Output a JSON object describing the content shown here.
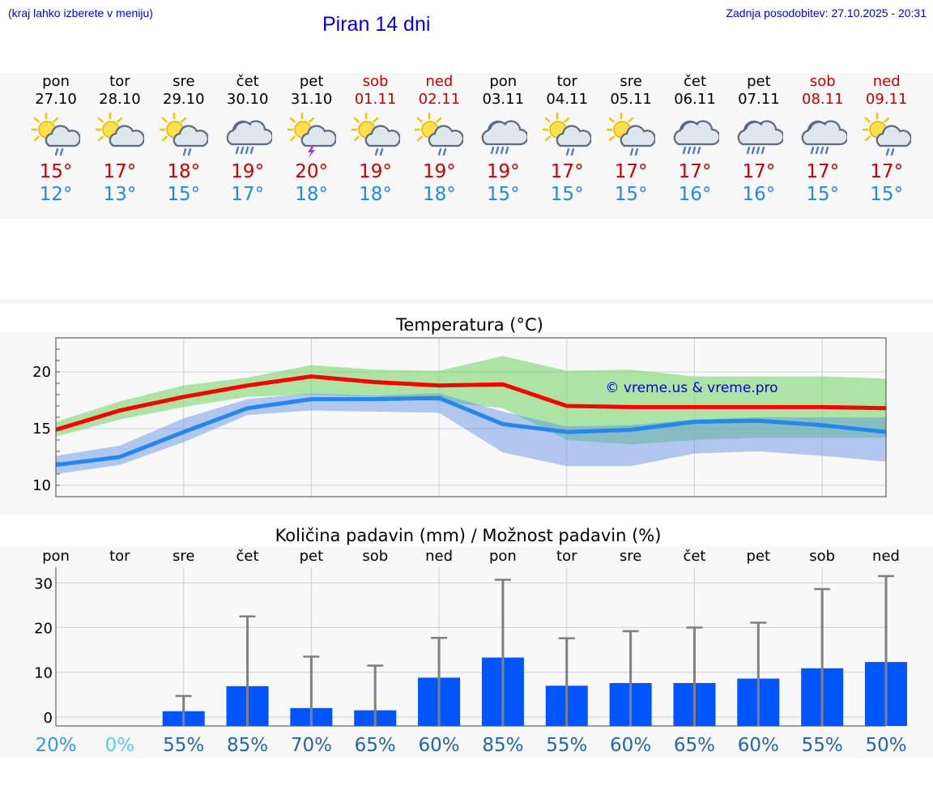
{
  "header": {
    "menu_hint": "(kraj lahko izberete v meniju)",
    "title": "Piran 14 dni",
    "updated": "Zadnja posodobitev: 27.10.2025 - 20:31"
  },
  "colors": {
    "tmax": "#cc0000",
    "tmin": "#2288ee",
    "weekend": "#cc0000",
    "bar": "#0055ff",
    "errbar": "#808080"
  },
  "days": [
    {
      "name": "pon",
      "date": "27.10",
      "weekend": false,
      "icon": "sun-cloud-rain-icon",
      "tmax": "15°",
      "tmin": "12°"
    },
    {
      "name": "tor",
      "date": "28.10",
      "weekend": false,
      "icon": "sun-cloud-icon",
      "tmax": "17°",
      "tmin": "13°"
    },
    {
      "name": "sre",
      "date": "29.10",
      "weekend": false,
      "icon": "sun-cloud-rain-icon",
      "tmax": "18°",
      "tmin": "15°"
    },
    {
      "name": "čet",
      "date": "30.10",
      "weekend": false,
      "icon": "cloud-rain-icon",
      "tmax": "19°",
      "tmin": "17°"
    },
    {
      "name": "pet",
      "date": "31.10",
      "weekend": false,
      "icon": "sun-cloud-thunder-icon",
      "tmax": "20°",
      "tmin": "18°"
    },
    {
      "name": "sob",
      "date": "01.11",
      "weekend": true,
      "icon": "sun-cloud-rain-icon",
      "tmax": "19°",
      "tmin": "18°"
    },
    {
      "name": "ned",
      "date": "02.11",
      "weekend": true,
      "icon": "sun-cloud-rain-icon",
      "tmax": "19°",
      "tmin": "18°"
    },
    {
      "name": "pon",
      "date": "03.11",
      "weekend": false,
      "icon": "cloud-rain-icon",
      "tmax": "19°",
      "tmin": "15°"
    },
    {
      "name": "tor",
      "date": "04.11",
      "weekend": false,
      "icon": "sun-cloud-rain-icon",
      "tmax": "17°",
      "tmin": "15°"
    },
    {
      "name": "sre",
      "date": "05.11",
      "weekend": false,
      "icon": "sun-cloud-rain-icon",
      "tmax": "17°",
      "tmin": "15°"
    },
    {
      "name": "čet",
      "date": "06.11",
      "weekend": false,
      "icon": "cloud-rain-icon",
      "tmax": "17°",
      "tmin": "16°"
    },
    {
      "name": "pet",
      "date": "07.11",
      "weekend": false,
      "icon": "cloud-rain-icon",
      "tmax": "17°",
      "tmin": "16°"
    },
    {
      "name": "sob",
      "date": "08.11",
      "weekend": true,
      "icon": "cloud-rain-icon",
      "tmax": "17°",
      "tmin": "15°"
    },
    {
      "name": "ned",
      "date": "09.11",
      "weekend": true,
      "icon": "sun-cloud-rain-icon",
      "tmax": "17°",
      "tmin": "15°"
    }
  ],
  "chart_data": [
    {
      "type": "line",
      "title": "Temperatura (°C)",
      "ylim": [
        9,
        23
      ],
      "yticks": [
        10,
        15,
        20
      ],
      "x": [
        0,
        1,
        2,
        3,
        4,
        5,
        6,
        7,
        8,
        9,
        10,
        11,
        12,
        13
      ],
      "annotation": "© vreme.us & vreme.pro",
      "series": [
        {
          "name": "tmax",
          "values": [
            14.9,
            16.6,
            17.8,
            18.8,
            19.6,
            19.1,
            18.8,
            18.9,
            17.0,
            16.9,
            16.9,
            16.9,
            16.9,
            16.8
          ],
          "band_low": [
            14.3,
            15.8,
            16.9,
            17.8,
            18.0,
            17.8,
            17.4,
            16.8,
            14.0,
            13.6,
            14.0,
            14.2,
            14.2,
            14.2
          ],
          "band_high": [
            15.6,
            17.4,
            18.8,
            19.5,
            20.6,
            20.2,
            20.1,
            21.4,
            20.1,
            20.2,
            19.6,
            19.6,
            19.6,
            19.4
          ]
        },
        {
          "name": "tmin",
          "values": [
            11.8,
            12.5,
            14.7,
            16.8,
            17.6,
            17.6,
            17.7,
            15.4,
            14.7,
            14.9,
            15.6,
            15.7,
            15.3,
            14.7
          ],
          "band_low": [
            11.0,
            11.8,
            13.8,
            16.2,
            16.6,
            16.5,
            16.4,
            12.9,
            11.7,
            11.7,
            12.8,
            13.0,
            12.6,
            12.1
          ],
          "band_high": [
            12.6,
            13.5,
            15.9,
            17.6,
            18.1,
            17.9,
            18.1,
            16.5,
            15.2,
            15.3,
            15.8,
            16.0,
            16.0,
            16.0
          ]
        }
      ]
    },
    {
      "type": "bar",
      "title": "Količina padavin (mm) / Možnost padavin (%)",
      "categories": [
        "pon",
        "tor",
        "sre",
        "čet",
        "pet",
        "sob",
        "ned",
        "pon",
        "tor",
        "sre",
        "čet",
        "pet",
        "sob",
        "ned"
      ],
      "ylim": [
        -2,
        33.5
      ],
      "yticks": [
        0,
        10,
        20,
        30
      ],
      "values": [
        0,
        0,
        1.3,
        6.9,
        2.0,
        1.5,
        8.8,
        13.3,
        7.0,
        7.6,
        7.6,
        8.6,
        10.9,
        12.3
      ],
      "errors_high": [
        0,
        0,
        4.7,
        22.5,
        13.5,
        11.5,
        17.7,
        30.7,
        17.6,
        19.2,
        20.0,
        21.1,
        28.6,
        31.5
      ],
      "probability": [
        "20%",
        "0%",
        "55%",
        "85%",
        "70%",
        "65%",
        "60%",
        "85%",
        "55%",
        "60%",
        "65%",
        "60%",
        "55%",
        "50%"
      ],
      "probability_colors": [
        "#3399dd",
        "#55ccee",
        "#2266aa",
        "#2266aa",
        "#2266aa",
        "#2266aa",
        "#2266aa",
        "#2266aa",
        "#2266aa",
        "#2266aa",
        "#2266aa",
        "#2266aa",
        "#2266aa",
        "#2266aa"
      ]
    }
  ]
}
